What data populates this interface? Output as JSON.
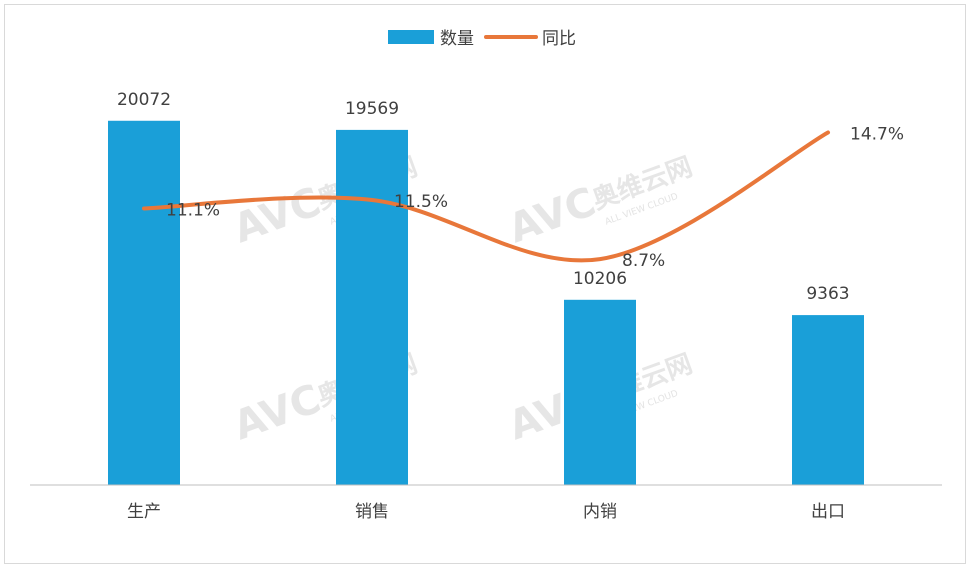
{
  "watermark": {
    "logo_text": "AVC",
    "brand_cn": "奥维云网",
    "brand_en": "ALL VIEW CLOUD"
  },
  "legend": {
    "bar_label": "数量",
    "line_label": "同比"
  },
  "colors": {
    "bar": "#1a9fd8",
    "line": "#e8773a",
    "axis": "#bfbfbf",
    "text": "#404040"
  },
  "chart_data": {
    "type": "bar",
    "title": "",
    "xlabel": "",
    "ylabel": "",
    "categories": [
      "生产",
      "销售",
      "内销",
      "出口"
    ],
    "series": [
      {
        "name": "数量",
        "type": "bar",
        "values": [
          20072,
          19569,
          10206,
          9363
        ],
        "labels": [
          "20072",
          "19569",
          "10206",
          "9363"
        ]
      },
      {
        "name": "同比",
        "type": "line",
        "values": [
          11.1,
          11.5,
          8.7,
          14.7
        ],
        "labels": [
          "11.1%",
          "11.5%",
          "8.7%",
          "14.7%"
        ]
      }
    ],
    "bar_axis_range": [
      0,
      20500
    ],
    "line_axis_range": [
      -2,
      16
    ],
    "legend_position": "top-center",
    "grid": false
  }
}
